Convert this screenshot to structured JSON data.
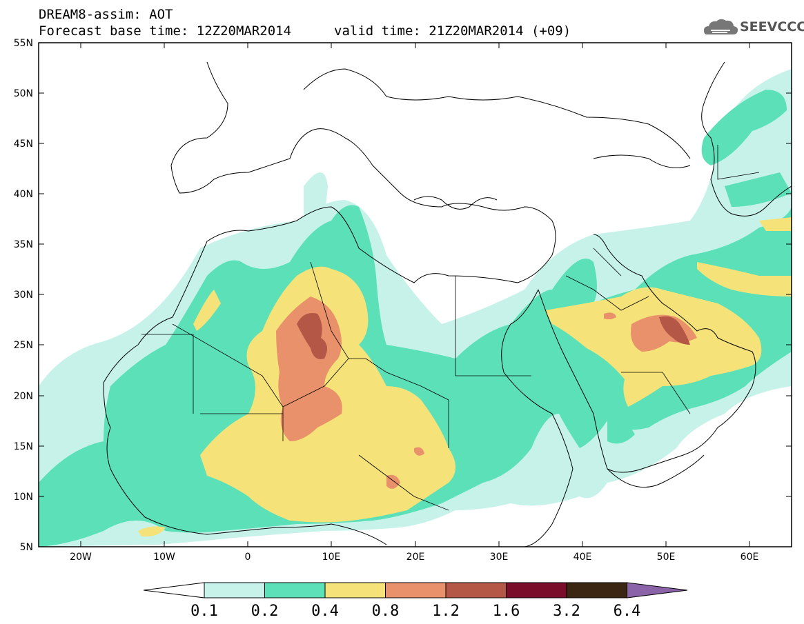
{
  "header": {
    "title": "DREAM8-assim: AOT",
    "forecast_base": "Forecast base time: 12Z20MAR2014",
    "valid_time": "valid time: 21Z20MAR2014 (+09)",
    "logo_text": "SEEVCCC"
  },
  "map": {
    "lon_range": [
      -25,
      65
    ],
    "lat_range": [
      5,
      55
    ],
    "lat_ticks": [
      "5N",
      "10N",
      "15N",
      "20N",
      "25N",
      "30N",
      "35N",
      "40N",
      "45N",
      "50N",
      "55N"
    ],
    "lon_ticks": [
      "20W",
      "10W",
      "0",
      "10E",
      "20E",
      "30E",
      "40E",
      "50E",
      "60E"
    ],
    "field": "Aerosol Optical Thickness (AOT)"
  },
  "colorbar": {
    "levels": [
      "0.1",
      "0.2",
      "0.4",
      "0.8",
      "1.2",
      "1.6",
      "3.2",
      "6.4"
    ],
    "colors": [
      "#c6f2ea",
      "#5ce0b8",
      "#f5e37a",
      "#e8916a",
      "#b45746",
      "#7a0d2a",
      "#3a2612",
      "#8a63a8"
    ]
  }
}
